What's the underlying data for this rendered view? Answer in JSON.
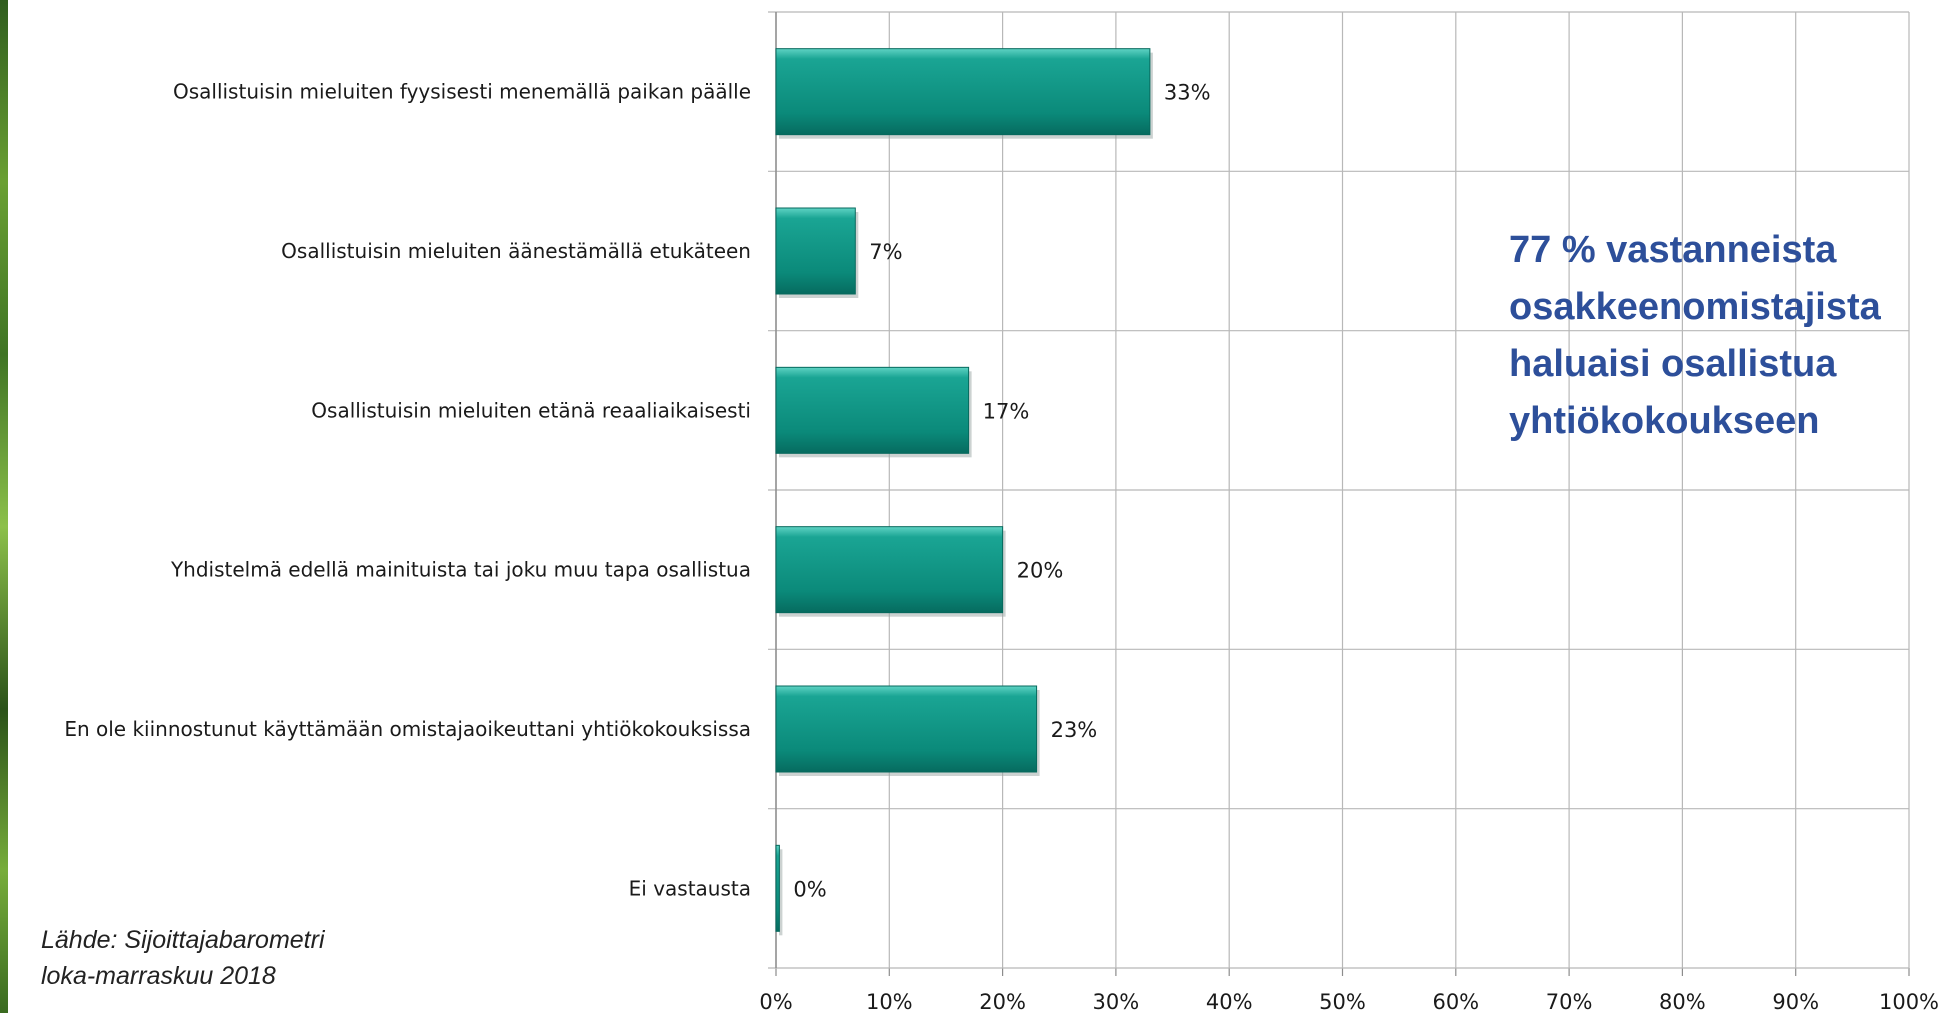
{
  "chart_data": {
    "type": "bar",
    "orientation": "horizontal",
    "categories": [
      "Osallistuisin mieluiten fyysisesti menemällä paikan päälle",
      "Osallistuisin mieluiten äänestämällä etukäteen",
      "Osallistuisin mieluiten etänä reaaliaikaisesti",
      "Yhdistelmä edellä mainituista tai joku muu tapa osallistua",
      "En ole kiinnostunut käyttämään omistajaoikeuttani yhtiökokouksissa",
      "Ei vastausta"
    ],
    "values": [
      33,
      7,
      17,
      20,
      23,
      0.3
    ],
    "data_labels": [
      "33%",
      "7%",
      "17%",
      "20%",
      "23%",
      "0%"
    ],
    "xlim": [
      0,
      100
    ],
    "x_ticks": [
      "0%",
      "10%",
      "20%",
      "30%",
      "40%",
      "50%",
      "60%",
      "70%",
      "80%",
      "90%",
      "100%"
    ],
    "grid": true,
    "bar_color": "#0f9a8a"
  },
  "annotation": {
    "lines": [
      "77 % vastanneista",
      "osakkeenomistajista",
      "haluaisi osallistua",
      "yhtiökokoukseen"
    ],
    "color": "#2d4f9a"
  },
  "source": {
    "lines": [
      "Lähde: Sijoittajabarometri",
      "loka-marraskuu 2018"
    ]
  }
}
